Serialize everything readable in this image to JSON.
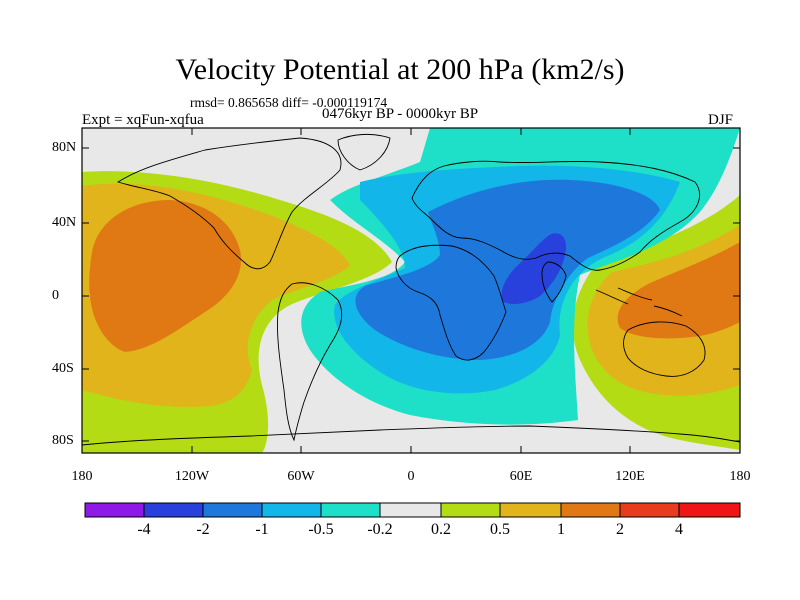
{
  "header": {
    "title": "Velocity Potential at 200 hPa (km2/s)",
    "stats": "rmsd= 0.865658 diff= -0.000119174",
    "period": "0476kyr BP - 0000kyr BP",
    "experiment": "Expt = xqFun-xqfua",
    "season": "DJF"
  },
  "axes": {
    "lat_labels": [
      "80N",
      "40N",
      "0",
      "40S",
      "80S"
    ],
    "lon_labels": [
      "180",
      "120W",
      "60W",
      "0",
      "60E",
      "120E",
      "180"
    ]
  },
  "colorbar": {
    "labels": [
      "-4",
      "-2",
      "-1",
      "-0.5",
      "-0.2",
      "0.2",
      "0.5",
      "1",
      "2",
      "4"
    ],
    "colors": [
      "#8f1ae8",
      "#2840dc",
      "#1e78dc",
      "#12b6e8",
      "#1ee0c8",
      "#e8e8e8",
      "#b4dc14",
      "#e0b41a",
      "#e07814",
      "#e83c1e",
      "#f01414"
    ]
  },
  "map_colors": {
    "land_outline": "#000000",
    "frame": "#000000"
  }
}
